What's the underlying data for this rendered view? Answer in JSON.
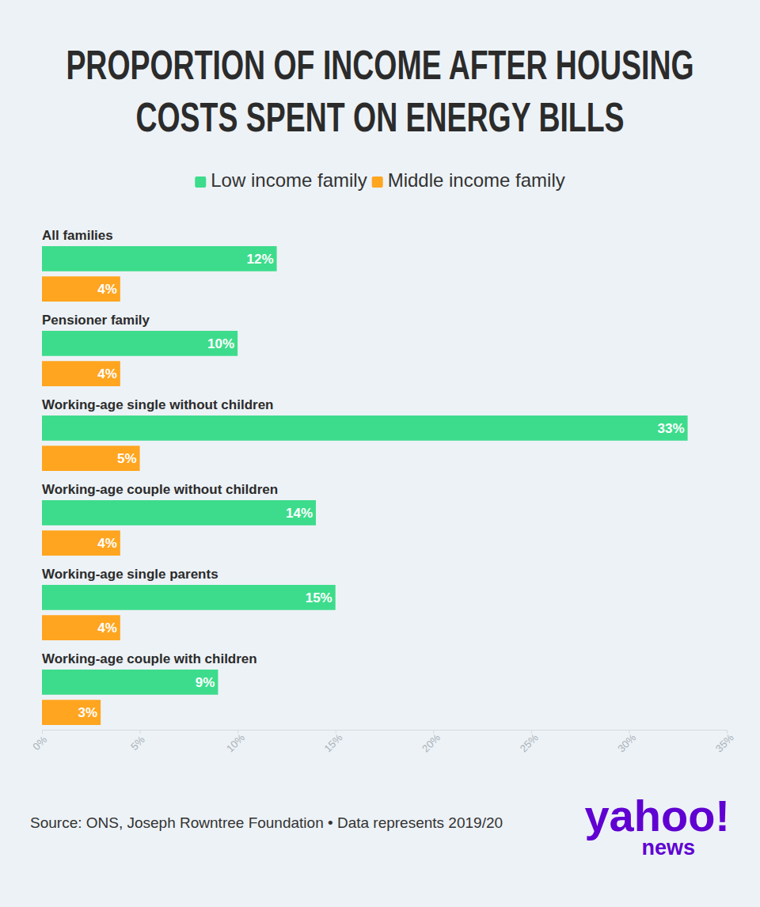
{
  "chart_data": {
    "type": "bar",
    "orientation": "horizontal",
    "title": "PROPORTION OF INCOME AFTER HOUSING COSTS SPENT ON ENERGY BILLS",
    "categories": [
      "All families",
      "Pensioner family",
      "Working-age single without children",
      "Working-age couple without children",
      "Working-age single parents",
      "Working-age couple with children"
    ],
    "series": [
      {
        "name": "Low income family",
        "color": "#3ddc8c",
        "values": [
          12,
          10,
          33,
          14,
          15,
          9
        ],
        "value_labels": [
          "12%",
          "10%",
          "33%",
          "14%",
          "15%",
          "9%"
        ]
      },
      {
        "name": "Middle income family",
        "color": "#ffa51f",
        "values": [
          4,
          4,
          5,
          4,
          4,
          3
        ],
        "value_labels": [
          "4%",
          "4%",
          "5%",
          "4%",
          "4%",
          "3%"
        ]
      }
    ],
    "xlim": [
      0,
      35
    ],
    "xticks": [
      {
        "value": 0,
        "label": "0%"
      },
      {
        "value": 5,
        "label": "5%"
      },
      {
        "value": 10,
        "label": "10%"
      },
      {
        "value": 15,
        "label": "15%"
      },
      {
        "value": 20,
        "label": "20%"
      },
      {
        "value": 25,
        "label": "25%"
      },
      {
        "value": 30,
        "label": "30%"
      },
      {
        "value": 35,
        "label": "35%"
      }
    ],
    "grid": false,
    "legend": "top",
    "data_labels": true,
    "source": "Source: ONS, Joseph Rowntree Foundation • Data represents 2019/20",
    "logo": "yahoo!",
    "logo_subtitle": "news"
  }
}
